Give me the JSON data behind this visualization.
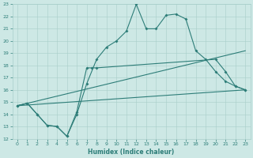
{
  "xlabel": "Humidex (Indice chaleur)",
  "xlim": [
    -0.5,
    23.5
  ],
  "ylim": [
    12,
    23
  ],
  "xticks": [
    0,
    1,
    2,
    3,
    4,
    5,
    6,
    7,
    8,
    9,
    10,
    11,
    12,
    13,
    14,
    15,
    16,
    17,
    18,
    19,
    20,
    21,
    22,
    23
  ],
  "yticks": [
    12,
    13,
    14,
    15,
    16,
    17,
    18,
    19,
    20,
    21,
    22,
    23
  ],
  "bg_color": "#cde8e5",
  "line_color": "#2d7d78",
  "grid_color": "#a8ceca",
  "line1_x": [
    0,
    1,
    2,
    3,
    4,
    5,
    6,
    7,
    8,
    9,
    10,
    11,
    12,
    13,
    14,
    15,
    16,
    17,
    18,
    19,
    20,
    21,
    22,
    23
  ],
  "line1_y": [
    14.7,
    14.9,
    14.0,
    13.1,
    13.0,
    12.2,
    14.0,
    16.5,
    18.5,
    19.5,
    20.0,
    20.8,
    23.0,
    21.0,
    21.0,
    22.1,
    22.2,
    21.8,
    19.2,
    18.5,
    17.5,
    16.7,
    16.3,
    16.0
  ],
  "line2_x": [
    0,
    1,
    2,
    3,
    4,
    5,
    6,
    7,
    7.5,
    8,
    20,
    21,
    22,
    23
  ],
  "line2_y": [
    14.7,
    14.9,
    14.0,
    13.1,
    13.0,
    12.2,
    14.2,
    17.8,
    17.8,
    17.8,
    18.5,
    17.5,
    16.3,
    16.0
  ],
  "line3_x": [
    0,
    23
  ],
  "line3_y": [
    14.7,
    19.2
  ],
  "line4_x": [
    0,
    23
  ],
  "line4_y": [
    14.7,
    16.0
  ],
  "marker_x1": [
    0,
    1,
    2,
    3,
    4,
    5,
    6,
    7,
    8,
    9,
    10,
    11,
    12,
    13,
    14,
    15,
    16,
    17,
    18,
    19,
    20,
    21,
    22,
    23
  ],
  "marker_y1": [
    14.7,
    14.9,
    14.0,
    13.1,
    13.0,
    12.2,
    14.0,
    16.5,
    18.5,
    19.5,
    20.0,
    20.8,
    23.0,
    21.0,
    21.0,
    22.1,
    22.2,
    21.8,
    19.2,
    18.5,
    17.5,
    16.7,
    16.3,
    16.0
  ],
  "marker_x2": [
    0,
    1,
    2,
    3,
    4,
    5,
    6,
    7,
    7.5,
    8,
    20,
    21,
    22,
    23
  ],
  "marker_y2": [
    14.7,
    14.9,
    14.0,
    13.1,
    13.0,
    12.2,
    14.2,
    17.8,
    17.8,
    17.8,
    18.5,
    17.5,
    16.3,
    16.0
  ]
}
